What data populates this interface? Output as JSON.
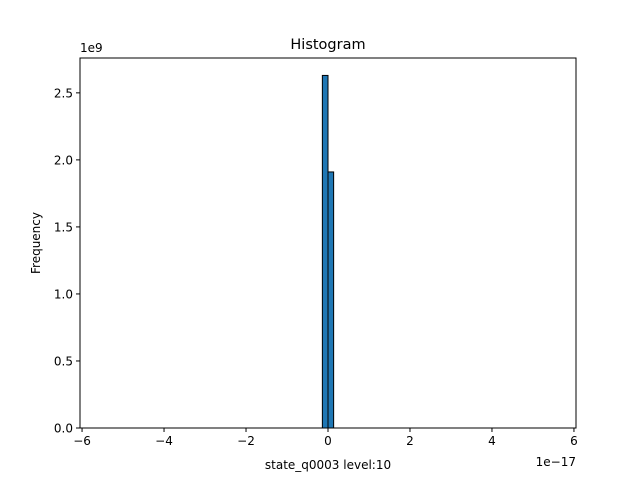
{
  "chart_data": {
    "type": "bar",
    "title": "Histogram",
    "xlabel": "state_q0003 level:10",
    "ylabel": "Frequency",
    "x_offset_label": "1e−17",
    "y_offset_label": "1e9",
    "x_scale_exponent": -17,
    "y_scale_exponent": 9,
    "xlim": [
      -6.05,
      6.05
    ],
    "ylim": [
      0,
      2.76
    ],
    "x_ticks": [
      -6,
      -4,
      -2,
      0,
      2,
      4,
      6
    ],
    "x_tick_labels": [
      "−6",
      "−4",
      "−2",
      "0",
      "2",
      "4",
      "6"
    ],
    "y_ticks": [
      0.0,
      0.5,
      1.0,
      1.5,
      2.0,
      2.5
    ],
    "y_tick_labels": [
      "0.0",
      "0.5",
      "1.0",
      "1.5",
      "2.0",
      "2.5"
    ],
    "grid": false,
    "bar_color": "#1f77b4",
    "edge_color": "#000000",
    "bins": [
      {
        "x0": -5.5,
        "x1": -0.1375,
        "value": 0
      },
      {
        "x0": -0.1375,
        "x1": 0.0,
        "value": 2.63
      },
      {
        "x0": 0.0,
        "x1": 0.1375,
        "value": 1.91
      },
      {
        "x0": 0.1375,
        "x1": 5.5,
        "value": 0
      }
    ]
  }
}
